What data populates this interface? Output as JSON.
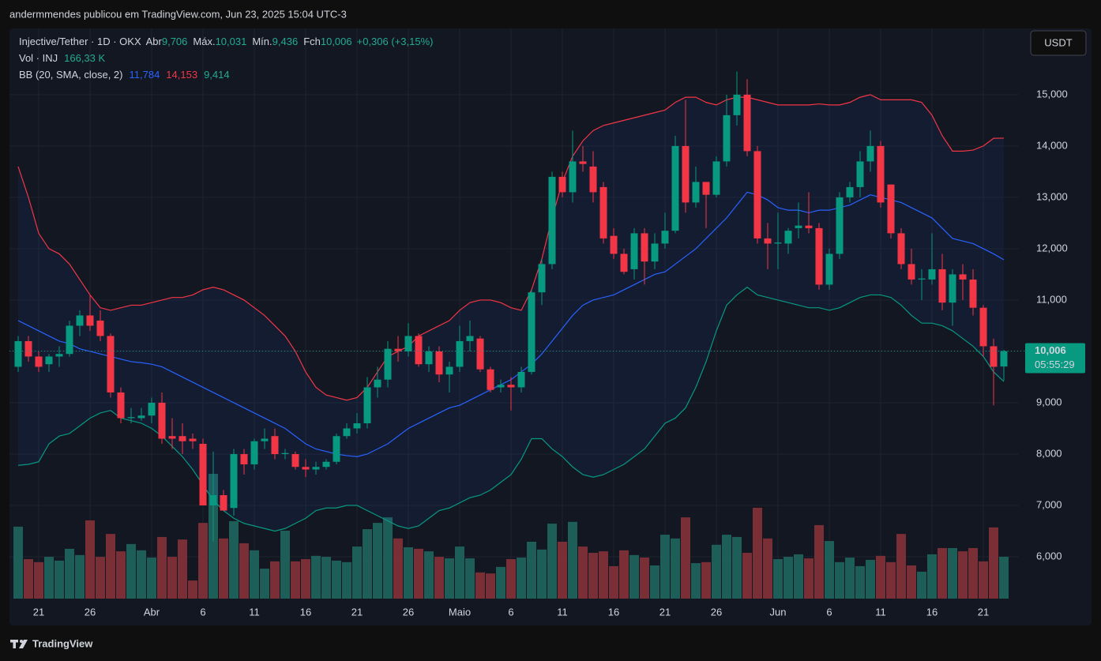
{
  "header": {
    "text": "andermmendes publicou em TradingView.com, Jun 23, 2025 15:04 UTC-3"
  },
  "footer": {
    "brand": "TradingView"
  },
  "chart_data": {
    "type": "candlestick",
    "currency": "USDT",
    "legend": {
      "symbol": "Injective/Tether · 1D · OKX",
      "open_label": "Abr",
      "open": "9,706",
      "high_label": "Máx.",
      "high": "10,031",
      "low_label": "Mín.",
      "low": "9,436",
      "close_label": "Fch",
      "close": "10,006",
      "change": "+0,306 (+3,15%)",
      "volume_label": "Vol · INJ",
      "volume": "166,33 K",
      "bb_label": "BB (20, SMA, close, 2)",
      "bb_basis": "11,784",
      "bb_upper": "14,153",
      "bb_lower": "9,414"
    },
    "last_price_label": "10,006",
    "countdown": "05:55:29",
    "up_color": "#089981",
    "down_color": "#f23645",
    "up_volume_color": "#1e5e59",
    "down_volume_color": "#7a2e36",
    "basis_color": "#2962ff",
    "upper_color": "#f23645",
    "lower_color": "#089981",
    "ylim": [
      5.185,
      16.29
    ],
    "yticks": [
      {
        "value": 6,
        "label": "6,000"
      },
      {
        "value": 7,
        "label": "7,000"
      },
      {
        "value": 8,
        "label": "8,000"
      },
      {
        "value": 9,
        "label": "9,000"
      },
      {
        "value": 10,
        "label": "10,000"
      },
      {
        "value": 11,
        "label": "11,000"
      },
      {
        "value": 12,
        "label": "12,000"
      },
      {
        "value": 13,
        "label": "13,000"
      },
      {
        "value": 14,
        "label": "14,000"
      },
      {
        "value": 15,
        "label": "15,000"
      }
    ],
    "grid": true,
    "categories": [
      null,
      null,
      "21",
      null,
      null,
      null,
      null,
      "26",
      null,
      null,
      null,
      null,
      null,
      "Abr",
      null,
      null,
      null,
      null,
      "6",
      null,
      null,
      null,
      null,
      "11",
      null,
      null,
      null,
      null,
      "16",
      null,
      null,
      null,
      null,
      "21",
      null,
      null,
      null,
      null,
      "26",
      null,
      null,
      null,
      null,
      "Maio",
      null,
      null,
      null,
      null,
      "6",
      null,
      null,
      null,
      null,
      "11",
      null,
      null,
      null,
      null,
      "16",
      null,
      null,
      null,
      null,
      "21",
      null,
      null,
      null,
      null,
      "26",
      null,
      null,
      null,
      null,
      null,
      "Jun",
      null,
      null,
      null,
      null,
      "6",
      null,
      null,
      null,
      null,
      "11",
      null,
      null,
      null,
      null,
      "16",
      null,
      null,
      null,
      null,
      "21",
      null,
      null
    ],
    "open": [
      9.7,
      10.2,
      9.9,
      9.75,
      9.9,
      9.95,
      10.5,
      10.7,
      10.6,
      10.3,
      9.2,
      8.7,
      8.7,
      8.75,
      9.0,
      8.35,
      8.35,
      8.3,
      8.2,
      7.0,
      7.2,
      6.95,
      8.0,
      7.8,
      8.25,
      8.35,
      8.0,
      8.0,
      7.75,
      7.7,
      7.75,
      7.85,
      8.35,
      8.5,
      8.6,
      9.3,
      9.45,
      10.05,
      10.0,
      10.3,
      9.75,
      10.0,
      9.55,
      9.7,
      10.2,
      10.25,
      9.65,
      9.3,
      9.35,
      9.3,
      9.6,
      11.15,
      11.7,
      13.4,
      13.1,
      13.7,
      13.6,
      13.2,
      12.25,
      11.9,
      11.6,
      12.3,
      11.75,
      12.1,
      12.35,
      14.0,
      12.9,
      13.3,
      13.05,
      13.7,
      14.6,
      15.0,
      13.9,
      12.2,
      12.1,
      12.1,
      12.4,
      12.45,
      12.4,
      11.3,
      11.9,
      13.0,
      13.2,
      13.7,
      14.0,
      13.25,
      12.3,
      11.7,
      11.4,
      11.4,
      11.6,
      10.95,
      11.5,
      11.4,
      10.85,
      10.1,
      9.706
    ],
    "high": [
      10.3,
      10.3,
      10.0,
      9.95,
      10.1,
      10.6,
      10.8,
      11.1,
      10.8,
      10.35,
      9.3,
      8.9,
      8.9,
      9.1,
      9.2,
      8.7,
      8.6,
      8.4,
      8.3,
      8.05,
      7.3,
      8.1,
      8.1,
      8.3,
      8.5,
      8.5,
      8.1,
      8.05,
      7.9,
      7.85,
      7.9,
      8.4,
      8.6,
      8.8,
      9.5,
      9.7,
      10.2,
      10.3,
      10.55,
      10.35,
      10.1,
      10.1,
      9.8,
      10.5,
      10.6,
      10.3,
      9.7,
      9.45,
      9.5,
      9.7,
      11.2,
      11.8,
      13.5,
      13.5,
      14.3,
      14.0,
      13.9,
      13.3,
      12.4,
      12.0,
      12.4,
      12.4,
      12.3,
      12.7,
      14.2,
      14.9,
      13.6,
      13.3,
      13.8,
      15.0,
      15.45,
      15.3,
      14.0,
      12.5,
      12.7,
      12.4,
      12.9,
      13.1,
      12.5,
      12.0,
      13.1,
      13.3,
      13.9,
      14.3,
      14.1,
      13.25,
      12.4,
      12.0,
      11.6,
      12.3,
      11.9,
      11.6,
      11.7,
      11.6,
      10.9,
      10.25,
      10.031
    ],
    "low": [
      9.6,
      9.8,
      9.6,
      9.6,
      9.7,
      9.9,
      10.3,
      10.4,
      10.2,
      9.1,
      8.6,
      8.6,
      8.65,
      8.6,
      8.2,
      8.1,
      8.0,
      8.1,
      7.0,
      6.3,
      6.9,
      6.8,
      7.6,
      7.7,
      8.1,
      7.9,
      7.9,
      7.7,
      7.55,
      7.6,
      7.7,
      7.8,
      8.3,
      8.4,
      8.5,
      9.1,
      9.3,
      9.8,
      9.9,
      9.7,
      9.6,
      9.4,
      9.2,
      9.6,
      10.0,
      9.6,
      9.2,
      9.2,
      8.85,
      9.2,
      9.55,
      10.9,
      11.6,
      13.0,
      12.9,
      13.5,
      12.9,
      12.1,
      11.8,
      11.5,
      11.4,
      11.3,
      11.6,
      12.0,
      12.3,
      12.7,
      12.8,
      12.4,
      13.0,
      13.6,
      14.4,
      13.8,
      12.1,
      11.6,
      11.6,
      11.9,
      12.2,
      12.3,
      11.2,
      11.2,
      11.8,
      12.9,
      13.0,
      13.5,
      12.8,
      12.2,
      11.6,
      11.3,
      11.0,
      11.3,
      10.8,
      10.5,
      11.0,
      10.7,
      9.9,
      8.95,
      9.436
    ],
    "close": [
      10.2,
      9.9,
      9.7,
      9.9,
      9.95,
      10.5,
      10.7,
      10.5,
      10.3,
      9.2,
      8.7,
      8.72,
      8.75,
      9.0,
      8.3,
      8.3,
      8.25,
      8.25,
      7.0,
      7.2,
      6.9,
      8.0,
      7.8,
      8.25,
      8.3,
      8.0,
      8.02,
      7.75,
      7.7,
      7.75,
      7.85,
      8.35,
      8.5,
      8.6,
      9.3,
      9.45,
      10.05,
      10.0,
      10.3,
      9.75,
      10.0,
      9.55,
      9.7,
      10.2,
      10.3,
      9.65,
      9.25,
      9.35,
      9.3,
      9.6,
      11.15,
      11.7,
      13.4,
      13.1,
      13.7,
      13.65,
      13.1,
      12.2,
      11.9,
      11.55,
      12.3,
      11.75,
      12.1,
      12.35,
      14.0,
      12.9,
      13.3,
      13.05,
      13.7,
      14.6,
      15.0,
      13.9,
      12.2,
      12.1,
      12.12,
      12.35,
      12.45,
      12.4,
      11.3,
      11.9,
      13.0,
      13.2,
      13.7,
      14.0,
      12.9,
      12.3,
      11.7,
      11.4,
      11.42,
      11.6,
      10.95,
      11.5,
      11.4,
      10.85,
      10.1,
      9.7,
      10.006
    ],
    "volume": [
      286,
      157,
      145,
      166,
      151,
      198,
      173,
      311,
      166,
      257,
      188,
      217,
      192,
      163,
      245,
      166,
      235,
      72,
      301,
      496,
      239,
      308,
      220,
      192,
      119,
      148,
      270,
      148,
      157,
      170,
      166,
      151,
      145,
      207,
      276,
      301,
      323,
      239,
      204,
      198,
      188,
      166,
      160,
      207,
      160,
      104,
      100,
      126,
      157,
      163,
      226,
      195,
      298,
      226,
      305,
      207,
      182,
      188,
      129,
      192,
      173,
      163,
      132,
      254,
      239,
      323,
      141,
      145,
      214,
      254,
      245,
      182,
      361,
      239,
      157,
      166,
      176,
      160,
      292,
      229,
      145,
      163,
      129,
      154,
      170,
      145,
      257,
      132,
      107,
      176,
      201,
      201,
      188,
      201,
      148,
      283,
      166.33
    ],
    "bb_basis": [
      10.6,
      10.5,
      10.4,
      10.3,
      10.2,
      10.15,
      10.05,
      10.0,
      9.95,
      9.9,
      9.85,
      9.8,
      9.78,
      9.75,
      9.7,
      9.6,
      9.5,
      9.4,
      9.3,
      9.2,
      9.1,
      9.0,
      8.9,
      8.8,
      8.7,
      8.6,
      8.5,
      8.35,
      8.2,
      8.1,
      8.05,
      8.0,
      7.97,
      7.95,
      8.0,
      8.1,
      8.2,
      8.35,
      8.5,
      8.6,
      8.7,
      8.8,
      8.9,
      8.95,
      9.05,
      9.15,
      9.25,
      9.35,
      9.45,
      9.6,
      9.75,
      9.95,
      10.2,
      10.45,
      10.7,
      10.9,
      11.0,
      11.05,
      11.1,
      11.2,
      11.3,
      11.4,
      11.5,
      11.55,
      11.7,
      11.85,
      12.0,
      12.2,
      12.4,
      12.6,
      12.85,
      13.1,
      13.05,
      12.95,
      12.8,
      12.75,
      12.75,
      12.7,
      12.75,
      12.75,
      12.8,
      12.85,
      12.95,
      13.05,
      13.0,
      12.95,
      12.9,
      12.8,
      12.7,
      12.6,
      12.4,
      12.2,
      12.15,
      12.1,
      12.0,
      11.9,
      11.784
    ],
    "bb_upper": [
      13.6,
      13.0,
      12.3,
      12.0,
      11.9,
      11.7,
      11.4,
      11.1,
      10.85,
      10.8,
      10.85,
      10.9,
      10.9,
      10.95,
      11.0,
      11.05,
      11.05,
      11.1,
      11.2,
      11.25,
      11.2,
      11.1,
      11.0,
      10.85,
      10.7,
      10.5,
      10.3,
      10.0,
      9.6,
      9.3,
      9.15,
      9.1,
      9.05,
      9.1,
      9.3,
      9.6,
      9.9,
      10.0,
      10.1,
      10.3,
      10.4,
      10.5,
      10.6,
      10.8,
      10.95,
      11.0,
      11.0,
      10.95,
      10.85,
      10.8,
      11.2,
      11.8,
      12.6,
      13.3,
      13.8,
      14.1,
      14.3,
      14.4,
      14.45,
      14.5,
      14.55,
      14.6,
      14.65,
      14.7,
      14.85,
      14.95,
      14.95,
      14.85,
      14.8,
      14.9,
      14.95,
      14.95,
      14.9,
      14.85,
      14.8,
      14.8,
      14.8,
      14.8,
      14.82,
      14.8,
      14.8,
      14.85,
      14.95,
      15.0,
      14.9,
      14.9,
      14.9,
      14.9,
      14.85,
      14.6,
      14.2,
      13.9,
      13.9,
      13.92,
      14.0,
      14.15,
      14.153
    ],
    "bb_lower": [
      7.78,
      7.8,
      7.85,
      8.2,
      8.35,
      8.4,
      8.55,
      8.7,
      8.8,
      8.85,
      8.7,
      8.65,
      8.6,
      8.5,
      8.35,
      8.15,
      7.95,
      7.7,
      7.4,
      7.1,
      6.9,
      6.75,
      6.65,
      6.6,
      6.55,
      6.5,
      6.55,
      6.65,
      6.75,
      6.9,
      6.95,
      6.95,
      7.0,
      7.0,
      6.9,
      6.8,
      6.7,
      6.6,
      6.55,
      6.6,
      6.75,
      6.9,
      6.95,
      7.05,
      7.15,
      7.2,
      7.3,
      7.45,
      7.6,
      7.9,
      8.3,
      8.3,
      8.1,
      7.95,
      7.75,
      7.6,
      7.55,
      7.6,
      7.7,
      7.8,
      7.95,
      8.1,
      8.35,
      8.6,
      8.7,
      8.9,
      9.3,
      9.8,
      10.4,
      10.9,
      11.1,
      11.25,
      11.1,
      11.05,
      11.0,
      10.95,
      10.9,
      10.85,
      10.85,
      10.8,
      10.85,
      10.95,
      11.05,
      11.1,
      11.1,
      11.05,
      10.9,
      10.7,
      10.55,
      10.55,
      10.5,
      10.4,
      10.25,
      10.1,
      9.9,
      9.6,
      9.414
    ]
  }
}
